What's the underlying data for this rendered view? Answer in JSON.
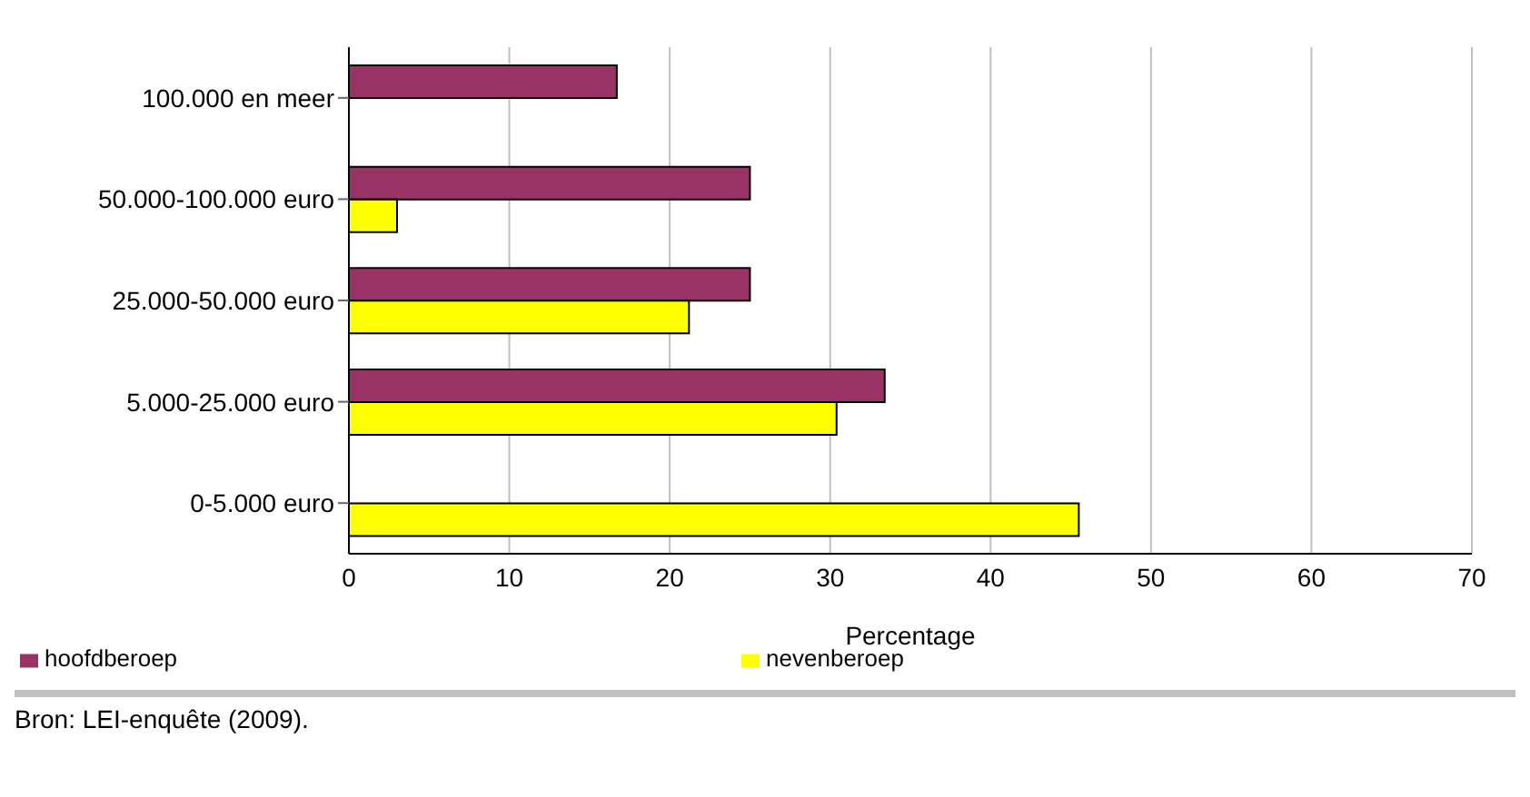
{
  "chart_data": {
    "type": "bar",
    "orientation": "horizontal",
    "xlabel": "Percentage",
    "categories": [
      "100.000 en meer",
      "50.000-100.000 euro",
      "25.000-50.000 euro",
      "5.000-25.000 euro",
      "0-5.000 euro"
    ],
    "series": [
      {
        "name": "nevenberoep",
        "color": "#ffff00",
        "values": [
          0,
          3,
          21.2,
          30.4,
          45.5
        ]
      },
      {
        "name": "hoofdberoep",
        "color": "#993366",
        "values": [
          16.7,
          25,
          25,
          33.4,
          0
        ]
      }
    ],
    "xlim": [
      0,
      70
    ],
    "xticks": [
      0,
      10,
      20,
      30,
      40,
      50,
      60,
      70
    ],
    "grid": "x",
    "legend": "bottom",
    "annotations": [
      "Bron: LEI-enquête (2009)."
    ]
  }
}
